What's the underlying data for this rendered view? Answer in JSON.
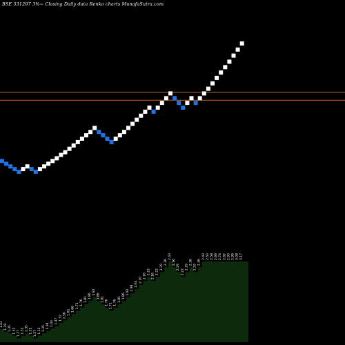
{
  "header": {
    "title": "BSE 531207 3%~  Closing Daily data  Renko  charts MunafaSutra.com"
  },
  "colors": {
    "background": "#000000",
    "up_brick": "#ffffff",
    "down_brick": "#1e73e8",
    "support_line": "#c8641e",
    "volume_fill": "#0d2a0d"
  },
  "chart_data": {
    "type": "renko",
    "title": "BSE 531207 3%~  Closing Daily data  Renko  charts MunafaSutra.com",
    "bricks": [
      {
        "dir": "down",
        "level": 1.43
      },
      {
        "dir": "down",
        "level": 1.39
      },
      {
        "dir": "down",
        "level": 1.35
      },
      {
        "dir": "down",
        "level": 1.31
      },
      {
        "dir": "down",
        "level": 1.27
      },
      {
        "dir": "up",
        "level": 1.31
      },
      {
        "dir": "up",
        "level": 1.35
      },
      {
        "dir": "down",
        "level": 1.31
      },
      {
        "dir": "down",
        "level": 1.27
      },
      {
        "dir": "up",
        "level": 1.31
      },
      {
        "dir": "up",
        "level": 1.35
      },
      {
        "dir": "up",
        "level": 1.39
      },
      {
        "dir": "up",
        "level": 1.43
      },
      {
        "dir": "up",
        "level": 1.47
      },
      {
        "dir": "up",
        "level": 1.52
      },
      {
        "dir": "up",
        "level": 1.56
      },
      {
        "dir": "up",
        "level": 1.61
      },
      {
        "dir": "up",
        "level": 1.66
      },
      {
        "dir": "up",
        "level": 1.71
      },
      {
        "dir": "up",
        "level": 1.76
      },
      {
        "dir": "up",
        "level": 1.81
      },
      {
        "dir": "up",
        "level": 1.86
      },
      {
        "dir": "up",
        "level": 1.92
      },
      {
        "dir": "down",
        "level": 1.86
      },
      {
        "dir": "down",
        "level": 1.81
      },
      {
        "dir": "down",
        "level": 1.76
      },
      {
        "dir": "down",
        "level": 1.71
      },
      {
        "dir": "up",
        "level": 1.76
      },
      {
        "dir": "up",
        "level": 1.81
      },
      {
        "dir": "up",
        "level": 1.86
      },
      {
        "dir": "up",
        "level": 1.92
      },
      {
        "dir": "up",
        "level": 1.98
      },
      {
        "dir": "up",
        "level": 2.04
      },
      {
        "dir": "up",
        "level": 2.1
      },
      {
        "dir": "up",
        "level": 2.16
      },
      {
        "dir": "up",
        "level": 2.22
      },
      {
        "dir": "down",
        "level": 2.16
      },
      {
        "dir": "up",
        "level": 2.22
      },
      {
        "dir": "up",
        "level": 2.29
      },
      {
        "dir": "up",
        "level": 2.36
      },
      {
        "dir": "up",
        "level": 2.43
      },
      {
        "dir": "down",
        "level": 2.36
      },
      {
        "dir": "down",
        "level": 2.29
      },
      {
        "dir": "down",
        "level": 2.22
      },
      {
        "dir": "up",
        "level": 2.29
      },
      {
        "dir": "up",
        "level": 2.36
      },
      {
        "dir": "down",
        "level": 2.29
      },
      {
        "dir": "up",
        "level": 2.36
      },
      {
        "dir": "up",
        "level": 2.43
      },
      {
        "dir": "up",
        "level": 2.5
      },
      {
        "dir": "up",
        "level": 2.58
      },
      {
        "dir": "up",
        "level": 2.66
      },
      {
        "dir": "up",
        "level": 2.74
      },
      {
        "dir": "up",
        "level": 2.82
      },
      {
        "dir": "up",
        "level": 2.9
      },
      {
        "dir": "up",
        "level": 2.99
      },
      {
        "dir": "up",
        "level": 3.08
      },
      {
        "dir": "up",
        "level": 3.17
      }
    ],
    "horizontal_lines": [
      2.45,
      2.33
    ],
    "volume_labels": [
      "1.43",
      "1.39",
      "1.35",
      "1.31",
      "1.27",
      "1.31",
      "1.35",
      "1.31",
      "1.27",
      "1.31",
      "1.35",
      "1.39",
      "1.43",
      "1.47",
      "1.52",
      "1.56",
      "1.61",
      "1.66",
      "1.71",
      "1.76",
      "1.81",
      "1.86",
      "1.92",
      "1.86",
      "1.81",
      "1.76",
      "1.71",
      "1.76",
      "1.81",
      "1.86",
      "1.92",
      "1.98",
      "2.04",
      "2.10",
      "2.16",
      "2.22",
      "2.16",
      "2.22",
      "2.29",
      "2.36",
      "2.43",
      "2.36",
      "2.29",
      "2.22",
      "2.29",
      "2.36",
      "2.29",
      "2.36",
      "2.43",
      "2.50",
      "2.58",
      "2.66",
      "2.74",
      "2.82",
      "2.90",
      "2.99",
      "3.08",
      "3.17"
    ],
    "volume_profile": [
      0.16,
      0.13,
      0.11,
      0.08,
      0.05,
      0.08,
      0.11,
      0.08,
      0.05,
      0.08,
      0.11,
      0.14,
      0.17,
      0.2,
      0.24,
      0.27,
      0.31,
      0.35,
      0.39,
      0.43,
      0.47,
      0.51,
      0.56,
      0.51,
      0.47,
      0.43,
      0.39,
      0.43,
      0.47,
      0.51,
      0.56,
      0.61,
      0.66,
      0.71,
      0.76,
      0.81,
      0.76,
      0.81,
      0.87,
      0.93,
      1.0,
      0.93,
      0.87,
      0.81,
      0.87,
      0.93,
      0.87,
      0.93,
      1.0,
      1.0,
      1.0,
      1.0,
      1.0,
      1.0,
      1.0,
      1.0,
      1.0,
      1.0
    ]
  }
}
